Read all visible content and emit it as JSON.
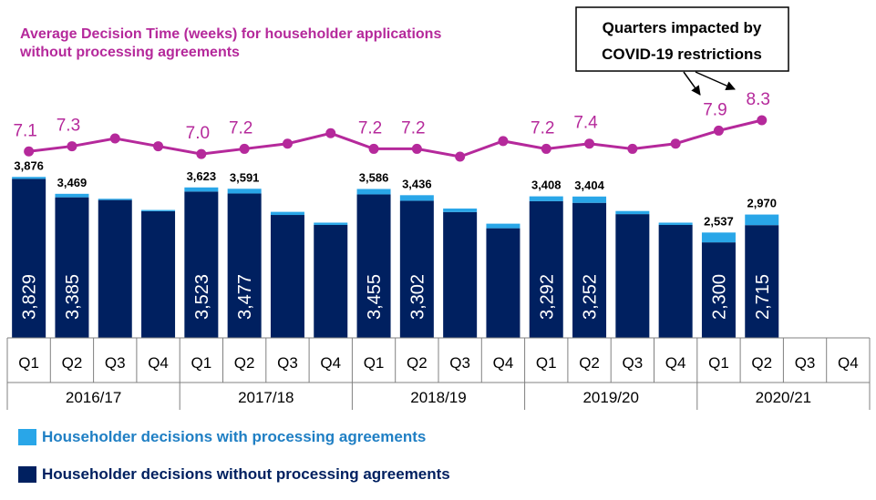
{
  "chart_data": {
    "type": "bar",
    "stacked": true,
    "line_title": "Average Decision Time (weeks) for householder applications without processing agreements",
    "line_title_lines": [
      "Average Decision Time (weeks) for householder applications",
      "without processing agreements"
    ],
    "annotation": {
      "lines": [
        "Quarters impacted by",
        "COVID-19 restrictions"
      ],
      "points_to": [
        "2020/21 Q1",
        "2020/21 Q2"
      ]
    },
    "years": [
      "2016/17",
      "2017/18",
      "2018/19",
      "2019/20",
      "2020/21"
    ],
    "quarters": [
      "Q1",
      "Q2",
      "Q3",
      "Q4"
    ],
    "series": [
      {
        "name": "Householder decisions without processing agreements",
        "color": "#002060",
        "values": [
          3829,
          3385,
          3320,
          3050,
          3523,
          3477,
          2960,
          2720,
          3455,
          3302,
          3030,
          2640,
          3292,
          3252,
          2980,
          2720,
          2300,
          2715,
          null,
          null
        ],
        "labels": [
          "3,829",
          "3,385",
          "",
          "",
          "3,523",
          "3,477",
          "",
          "",
          "3,455",
          "3,302",
          "",
          "",
          "3,292",
          "3,252",
          "",
          "",
          "2,300",
          "2,715",
          "",
          ""
        ]
      },
      {
        "name": "Householder decisions with processing agreements",
        "color": "#29A6E8",
        "values": [
          47,
          84,
          30,
          30,
          100,
          114,
          75,
          55,
          131,
          134,
          85,
          110,
          116,
          152,
          75,
          55,
          237,
          255,
          null,
          null
        ]
      }
    ],
    "totals": [
      3876,
      3469,
      3350,
      3080,
      3623,
      3591,
      3035,
      2775,
      3586,
      3436,
      3115,
      2750,
      3408,
      3404,
      3055,
      2775,
      2537,
      2970,
      null,
      null
    ],
    "total_labels": [
      "3,876",
      "3,469",
      "",
      "",
      "3,623",
      "3,591",
      "",
      "",
      "3,586",
      "3,436",
      "",
      "",
      "3,408",
      "3,404",
      "",
      "",
      "2,537",
      "2,970",
      "",
      ""
    ],
    "average_decision_time": {
      "color": "#B5299B",
      "values": [
        7.1,
        7.3,
        7.6,
        7.3,
        7.0,
        7.2,
        7.4,
        7.8,
        7.2,
        7.2,
        6.9,
        7.5,
        7.2,
        7.4,
        7.2,
        7.4,
        7.9,
        8.3,
        null,
        null
      ],
      "labels": [
        "7.1",
        "7.3",
        "",
        "",
        "7.0",
        "7.2",
        "",
        "",
        "7.2",
        "7.2",
        "",
        "",
        "7.2",
        "7.4",
        "",
        "",
        "7.9",
        "8.3",
        "",
        ""
      ]
    },
    "ylim": [
      0,
      4500
    ],
    "legend": [
      {
        "label": "Householder decisions with processing agreements",
        "color": "#29A6E8",
        "text_color": "#1F7FC4"
      },
      {
        "label": "Householder decisions without processing agreements",
        "color": "#002060",
        "text_color": "#002060"
      }
    ],
    "legend_position": "bottom-left"
  }
}
